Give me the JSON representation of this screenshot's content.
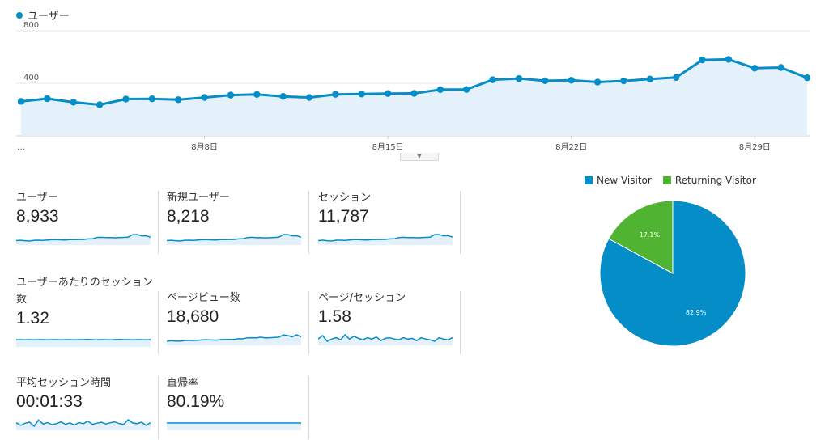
{
  "legend": {
    "series_name": "ユーザー",
    "color": "#058dc7"
  },
  "chart_data": [
    {
      "type": "area",
      "series": [
        {
          "name": "ユーザー",
          "values": [
            262,
            283,
            256,
            237,
            280,
            282,
            275,
            292,
            310,
            315,
            300,
            292,
            316,
            318,
            322,
            323,
            352,
            353,
            427,
            436,
            419,
            423,
            409,
            418,
            432,
            444,
            578,
            582,
            515,
            520,
            442
          ]
        }
      ],
      "x_tick_labels": [
        "…",
        "8月8日",
        "8月15日",
        "8月22日",
        "8月29日"
      ],
      "y_tick_labels": [
        "800",
        "400"
      ],
      "ylim": [
        0,
        800
      ],
      "grid": true,
      "color": "#058dc7",
      "fill": "#e5f1fa"
    },
    {
      "type": "pie",
      "labels": [
        "New Visitor",
        "Returning Visitor"
      ],
      "values": [
        82.9,
        17.1
      ],
      "value_labels": [
        "82.9%",
        "17.1%"
      ],
      "colors": [
        "#058dc7",
        "#50b432"
      ],
      "legend": "top"
    }
  ],
  "metrics": [
    {
      "label": "ユーザー",
      "value": "8,933",
      "spark": [
        260,
        280,
        255,
        240,
        280,
        282,
        275,
        290,
        310,
        315,
        300,
        292,
        316,
        318,
        322,
        323,
        350,
        353,
        427,
        436,
        419,
        423,
        409,
        418,
        432,
        444,
        578,
        582,
        515,
        520,
        442
      ]
    },
    {
      "label": "新規ユーザー",
      "value": "8,218",
      "spark": [
        240,
        255,
        235,
        220,
        258,
        260,
        252,
        268,
        286,
        290,
        275,
        268,
        290,
        292,
        296,
        298,
        325,
        328,
        395,
        405,
        388,
        392,
        378,
        387,
        400,
        412,
        540,
        545,
        480,
        485,
        410
      ]
    },
    {
      "label": "セッション",
      "value": "11,787",
      "spark": [
        345,
        370,
        338,
        315,
        370,
        372,
        362,
        385,
        410,
        415,
        395,
        385,
        418,
        420,
        425,
        426,
        465,
        468,
        560,
        575,
        553,
        558,
        540,
        552,
        570,
        586,
        760,
        768,
        680,
        686,
        585
      ]
    },
    {
      "label": "ユーザーあたりのセッション数",
      "value": "1.32",
      "spark": [
        1.31,
        1.32,
        1.31,
        1.32,
        1.31,
        1.32,
        1.32,
        1.31,
        1.32,
        1.32,
        1.31,
        1.32,
        1.32,
        1.31,
        1.32,
        1.32,
        1.33,
        1.32,
        1.31,
        1.32,
        1.32,
        1.31,
        1.32,
        1.33,
        1.32,
        1.32,
        1.31,
        1.32,
        1.32,
        1.31,
        1.32
      ]
    },
    {
      "label": "ページビュー数",
      "value": "18,680",
      "spark": [
        500,
        545,
        520,
        505,
        560,
        575,
        560,
        590,
        620,
        630,
        610,
        600,
        640,
        650,
        655,
        660,
        720,
        710,
        800,
        810,
        790,
        860,
        790,
        805,
        830,
        850,
        1050,
        1000,
        880,
        1060,
        880
      ]
    },
    {
      "label": "ページ/セッション",
      "value": "1.58",
      "spark": [
        1.58,
        1.63,
        1.55,
        1.58,
        1.6,
        1.57,
        1.64,
        1.58,
        1.62,
        1.59,
        1.57,
        1.6,
        1.58,
        1.61,
        1.56,
        1.59,
        1.6,
        1.58,
        1.57,
        1.6,
        1.58,
        1.59,
        1.56,
        1.6,
        1.58,
        1.57,
        1.55,
        1.6,
        1.58,
        1.57,
        1.6
      ]
    },
    {
      "label": "平均セッション時間",
      "value": "00:01:33",
      "spark": [
        95,
        80,
        92,
        98,
        75,
        110,
        88,
        96,
        84,
        90,
        100,
        86,
        94,
        82,
        96,
        90,
        104,
        86,
        92,
        98,
        88,
        95,
        100,
        90,
        86,
        112,
        94,
        90,
        98,
        80,
        96
      ]
    },
    {
      "label": "直帰率",
      "value": "80.19%",
      "spark": [
        80.2,
        80.1,
        80.2,
        80.3,
        80.2,
        80.1,
        80.2,
        80.2,
        80.3,
        80.2,
        80.1,
        80.2,
        80.2,
        80.3,
        80.2,
        80.2,
        80.1,
        80.2,
        80.2,
        80.3,
        80.2,
        80.1,
        80.2,
        80.2,
        80.2,
        80.3,
        80.2,
        80.1,
        80.2,
        80.2,
        80.2
      ]
    }
  ]
}
